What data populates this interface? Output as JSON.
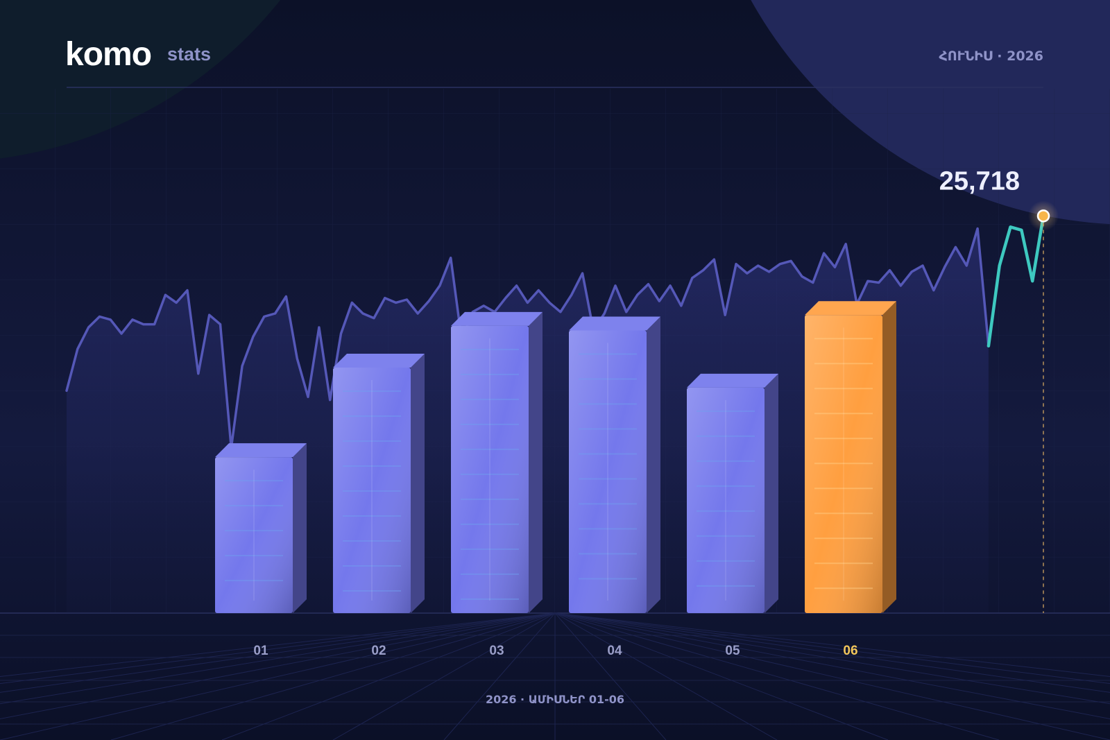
{
  "header": {
    "logo": "komo",
    "product": "stats",
    "period": "ՀՈՒՆԻՍ · 2026"
  },
  "footer": {
    "caption": "2026 · ԱՄԻՍՆԵՐ 01-06"
  },
  "chart_data": [
    {
      "type": "bar",
      "categories": [
        "01",
        "02",
        "03",
        "04",
        "05",
        "06"
      ],
      "values": [
        10100,
        15900,
        18600,
        18300,
        14600,
        19300
      ],
      "colors": [
        "#7478ec",
        "#7478ec",
        "#7478ec",
        "#7478ec",
        "#7478ec",
        "#ff9f40"
      ],
      "label_colors": [
        "#9a9ec8",
        "#9a9ec8",
        "#9a9ec8",
        "#9a9ec8",
        "#9a9ec8",
        "#f2c65a"
      ],
      "ylim": [
        0,
        28000
      ]
    },
    {
      "type": "line",
      "ylim": [
        0,
        28000
      ],
      "series": [
        {
          "color": "#5558b8",
          "values": [
            14400,
            17100,
            18500,
            19200,
            19000,
            18100,
            19000,
            18700,
            18700,
            20600,
            20100,
            20900,
            15500,
            19300,
            18700,
            10700,
            16000,
            17900,
            19200,
            19400,
            20500,
            16500,
            14000,
            18500,
            13800,
            18100,
            20100,
            19400,
            19100,
            20400,
            20100,
            20300,
            19400,
            20200,
            21200,
            23000,
            17700,
            19500,
            19900,
            19500,
            20400,
            21200,
            20100,
            20900,
            20100,
            19500,
            20600,
            22000,
            18300,
            19400,
            21200,
            19500,
            20600,
            21300,
            20200,
            21200,
            19900,
            21700,
            22200,
            22900,
            19300,
            22600,
            22000,
            22500,
            22100,
            22600,
            22800,
            21800,
            21400,
            23300,
            22400,
            23900,
            20000,
            21500,
            21400,
            22200,
            21200,
            22100,
            22500,
            20900,
            22400,
            23700,
            22500,
            24900,
            17300,
            null,
            null,
            null,
            null,
            null
          ]
        },
        {
          "color": "#3ec9c0",
          "values": [
            null,
            null,
            null,
            null,
            null,
            null,
            null,
            null,
            null,
            null,
            null,
            null,
            null,
            null,
            null,
            null,
            null,
            null,
            null,
            null,
            null,
            null,
            null,
            null,
            null,
            null,
            null,
            null,
            null,
            null,
            null,
            null,
            null,
            null,
            null,
            null,
            null,
            null,
            null,
            null,
            null,
            null,
            null,
            null,
            null,
            null,
            null,
            null,
            null,
            null,
            null,
            null,
            null,
            null,
            null,
            null,
            null,
            null,
            null,
            null,
            null,
            null,
            null,
            null,
            null,
            null,
            null,
            null,
            null,
            null,
            null,
            null,
            null,
            null,
            null,
            null,
            null,
            null,
            null,
            null,
            null,
            null,
            null,
            null,
            17300,
            22500,
            25000,
            24800,
            21500,
            25718
          ],
          "value_labels": [
            null,
            null,
            null,
            null,
            null,
            null,
            null,
            null,
            null,
            null,
            null,
            null,
            null,
            null,
            null,
            null,
            null,
            null,
            null,
            null,
            null,
            null,
            null,
            null,
            null,
            null,
            null,
            null,
            null,
            null,
            null,
            null,
            null,
            null,
            null,
            null,
            null,
            null,
            null,
            null,
            null,
            null,
            null,
            null,
            null,
            null,
            null,
            null,
            null,
            null,
            null,
            null,
            null,
            null,
            null,
            null,
            null,
            null,
            null,
            null,
            null,
            null,
            null,
            null,
            null,
            null,
            null,
            null,
            null,
            null,
            null,
            null,
            null,
            null,
            null,
            null,
            null,
            null,
            null,
            null,
            null,
            null,
            null,
            null,
            null,
            null,
            null,
            null,
            null,
            "25,718"
          ]
        }
      ]
    }
  ]
}
